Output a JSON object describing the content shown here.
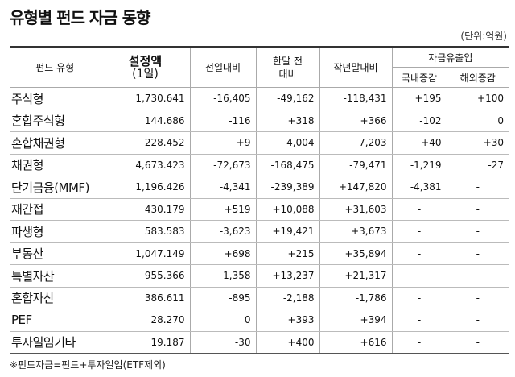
{
  "header": {
    "title": "유형별 펀드 자금 동향",
    "unit": "(단위:억원)"
  },
  "table": {
    "columns": {
      "type": "펀드 유형",
      "amount": [
        "설정액",
        "(1일)"
      ],
      "day": "전일대비",
      "month": [
        "한달 전",
        "대비"
      ],
      "year": "작년말대비",
      "flow": "자금유출입",
      "domestic": "국내증감",
      "overseas": "해외증감"
    },
    "rows": [
      [
        "주식형",
        "1,730.641",
        "-16,405",
        "-49,162",
        "-118,431",
        "+195",
        "+100"
      ],
      [
        "혼합주식형",
        "144.686",
        "-116",
        "+318",
        "+366",
        "-102",
        "0"
      ],
      [
        "혼합채권형",
        "228.452",
        "+9",
        "-4,004",
        "-7,203",
        "+40",
        "+30"
      ],
      [
        "채권형",
        "4,673.423",
        "-72,673",
        "-168,475",
        "-79,471",
        "-1,219",
        "-27"
      ],
      [
        "단기금융(MMF)",
        "1,196.426",
        "-4,341",
        "-239,389",
        "+147,820",
        "-4,381",
        "-"
      ],
      [
        "재간접",
        "430.179",
        "+519",
        "+10,088",
        "+31,603",
        "-",
        "-"
      ],
      [
        "파생형",
        "583.583",
        "-3,623",
        "+19,421",
        "+3,673",
        "-",
        "-"
      ],
      [
        "부동산",
        "1,047.149",
        "+698",
        "+215",
        "+35,894",
        "-",
        "-"
      ],
      [
        "특별자산",
        "955.366",
        "-1,358",
        "+13,237",
        "+21,317",
        "-",
        "-"
      ],
      [
        "혼합자산",
        "386.611",
        "-895",
        "-2,188",
        "-1,786",
        "-",
        "-"
      ],
      [
        "PEF",
        "28.270",
        "0",
        "+393",
        "+394",
        "-",
        "-"
      ],
      [
        "투자일임기타",
        "19.187",
        "-30",
        "+400",
        "+616",
        "-",
        "-"
      ]
    ]
  },
  "footnote": "※펀드자금=펀드+투자일임(ETF제외)"
}
